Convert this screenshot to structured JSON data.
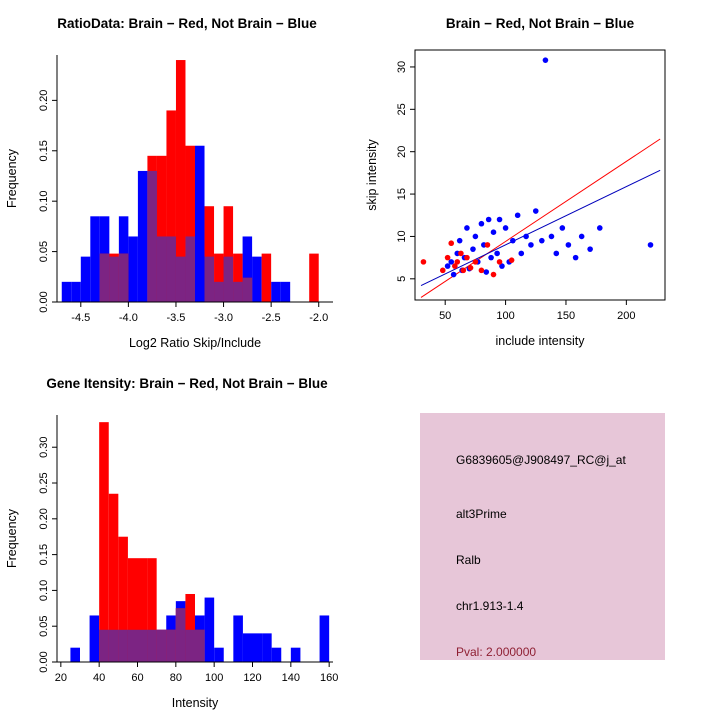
{
  "page": {
    "background": "#ffffff"
  },
  "chart_data": [
    {
      "id": "ratio_histogram",
      "type": "bar",
      "subtype": "overlaid_histogram",
      "title": "RatioData: Brain − Red, Not Brain − Blue",
      "xlabel": "Log2 Ratio Skip/Include",
      "ylabel": "Frequency",
      "xlim": [
        -4.75,
        -1.85
      ],
      "ylim": [
        0,
        0.245
      ],
      "xticks": [
        -4.5,
        -4.0,
        -3.5,
        -3.0,
        -2.5,
        -2.0
      ],
      "xtick_labels": [
        "-4.5",
        "-4.0",
        "-3.5",
        "-3.0",
        "-2.5",
        "-2.0"
      ],
      "yticks": [
        0,
        0.05,
        0.1,
        0.15,
        0.2
      ],
      "ytick_labels": [
        "0.00",
        "0.05",
        "0.10",
        "0.15",
        "0.20"
      ],
      "bin_width": 0.1,
      "overlap_color": "#7c2483",
      "grid": false,
      "legend": "none",
      "series": [
        {
          "name": "Not Brain",
          "color": "#0000ff",
          "bins": [
            [
              -4.7,
              0.02
            ],
            [
              -4.6,
              0.02
            ],
            [
              -4.5,
              0.045
            ],
            [
              -4.4,
              0.085
            ],
            [
              -4.3,
              0.085
            ],
            [
              -4.2,
              0.045
            ],
            [
              -4.1,
              0.085
            ],
            [
              -4.0,
              0.065
            ],
            [
              -3.9,
              0.13
            ],
            [
              -3.8,
              0.13
            ],
            [
              -3.7,
              0.065
            ],
            [
              -3.6,
              0.065
            ],
            [
              -3.5,
              0.045
            ],
            [
              -3.4,
              0.065
            ],
            [
              -3.3,
              0.155
            ],
            [
              -3.2,
              0.045
            ],
            [
              -3.1,
              0.02
            ],
            [
              -3.0,
              0.045
            ],
            [
              -2.9,
              0.02
            ],
            [
              -2.8,
              0.065
            ],
            [
              -2.7,
              0.045
            ],
            [
              -2.5,
              0.02
            ],
            [
              -2.4,
              0.02
            ]
          ]
        },
        {
          "name": "Brain",
          "color": "#ff0000",
          "bins": [
            [
              -4.3,
              0.048
            ],
            [
              -4.2,
              0.048
            ],
            [
              -4.1,
              0.048
            ],
            [
              -3.8,
              0.145
            ],
            [
              -3.7,
              0.145
            ],
            [
              -3.6,
              0.19
            ],
            [
              -3.5,
              0.24
            ],
            [
              -3.4,
              0.155
            ],
            [
              -3.2,
              0.095
            ],
            [
              -3.1,
              0.048
            ],
            [
              -3.0,
              0.095
            ],
            [
              -2.9,
              0.048
            ],
            [
              -2.8,
              0.024
            ],
            [
              -2.6,
              0.048
            ],
            [
              -2.1,
              0.048
            ]
          ]
        }
      ]
    },
    {
      "id": "intensity_scatter",
      "type": "scatter",
      "title": "Brain − Red, Not Brain − Blue",
      "xlabel": "include intensity",
      "ylabel": "skip intensity",
      "xlim": [
        25,
        232
      ],
      "ylim": [
        2.5,
        32
      ],
      "xticks": [
        50,
        100,
        150,
        200
      ],
      "xtick_labels": [
        "50",
        "100",
        "150",
        "200"
      ],
      "yticks": [
        5,
        10,
        15,
        20,
        25,
        30
      ],
      "ytick_labels": [
        "5",
        "10",
        "15",
        "20",
        "25",
        "30"
      ],
      "grid": false,
      "legend": "none",
      "series": [
        {
          "name": "Not Brain",
          "color": "#0000ff",
          "points": [
            [
              52,
              6.5
            ],
            [
              55,
              7
            ],
            [
              57,
              5.5
            ],
            [
              60,
              8
            ],
            [
              62,
              9.5
            ],
            [
              64,
              6
            ],
            [
              66,
              7.5
            ],
            [
              68,
              11
            ],
            [
              70,
              6.2
            ],
            [
              73,
              8.5
            ],
            [
              75,
              10
            ],
            [
              77,
              7
            ],
            [
              80,
              11.5
            ],
            [
              82,
              9
            ],
            [
              84,
              5.8
            ],
            [
              86,
              12
            ],
            [
              88,
              7.5
            ],
            [
              90,
              10.5
            ],
            [
              93,
              8
            ],
            [
              95,
              12
            ],
            [
              97,
              6.5
            ],
            [
              100,
              11
            ],
            [
              103,
              7
            ],
            [
              106,
              9.5
            ],
            [
              110,
              12.5
            ],
            [
              113,
              8
            ],
            [
              117,
              10
            ],
            [
              121,
              9
            ],
            [
              125,
              13
            ],
            [
              130,
              9.5
            ],
            [
              133,
              30.8
            ],
            [
              138,
              10
            ],
            [
              142,
              8
            ],
            [
              147,
              11
            ],
            [
              152,
              9
            ],
            [
              158,
              7.5
            ],
            [
              163,
              10
            ],
            [
              170,
              8.5
            ],
            [
              178,
              11
            ],
            [
              220,
              9
            ]
          ]
        },
        {
          "name": "Brain",
          "color": "#ff0000",
          "points": [
            [
              32,
              7
            ],
            [
              48,
              6
            ],
            [
              52,
              7.5
            ],
            [
              55,
              9.2
            ],
            [
              58,
              6.5
            ],
            [
              60,
              7
            ],
            [
              63,
              8
            ],
            [
              65,
              6
            ],
            [
              68,
              7.5
            ],
            [
              71,
              6.3
            ],
            [
              75,
              7
            ],
            [
              80,
              6
            ],
            [
              85,
              9
            ],
            [
              90,
              5.5
            ],
            [
              95,
              7
            ],
            [
              105,
              7.2
            ]
          ]
        }
      ],
      "lines": [
        {
          "name": "brain_fit",
          "color": "#ff0000",
          "x": [
            30,
            228
          ],
          "y": [
            2.8,
            21.5
          ]
        },
        {
          "name": "not_brain_fit",
          "color": "#0000bb",
          "x": [
            30,
            228
          ],
          "y": [
            4.2,
            17.8
          ]
        }
      ]
    },
    {
      "id": "gene_intensity_histogram",
      "type": "bar",
      "subtype": "overlaid_histogram",
      "title": "Gene Itensity: Brain − Red, Not Brain − Blue",
      "xlabel": "Intensity",
      "ylabel": "Frequency",
      "xlim": [
        18,
        162
      ],
      "ylim": [
        0,
        0.345
      ],
      "xticks": [
        20,
        40,
        60,
        80,
        100,
        120,
        140,
        160
      ],
      "xtick_labels": [
        "20",
        "40",
        "60",
        "80",
        "100",
        "120",
        "140",
        "160"
      ],
      "yticks": [
        0,
        0.05,
        0.1,
        0.15,
        0.2,
        0.25,
        0.3
      ],
      "ytick_labels": [
        "0.00",
        "0.05",
        "0.10",
        "0.15",
        "0.20",
        "0.25",
        "0.30"
      ],
      "bin_width": 5,
      "overlap_color": "#7c2483",
      "grid": false,
      "legend": "none",
      "series": [
        {
          "name": "Not Brain",
          "color": "#0000ff",
          "bins": [
            [
              25,
              0.02
            ],
            [
              35,
              0.065
            ],
            [
              40,
              0.045
            ],
            [
              45,
              0.045
            ],
            [
              50,
              0.045
            ],
            [
              55,
              0.045
            ],
            [
              60,
              0.045
            ],
            [
              65,
              0.045
            ],
            [
              70,
              0.045
            ],
            [
              75,
              0.065
            ],
            [
              80,
              0.085
            ],
            [
              85,
              0.045
            ],
            [
              90,
              0.065
            ],
            [
              95,
              0.09
            ],
            [
              100,
              0.02
            ],
            [
              110,
              0.065
            ],
            [
              115,
              0.04
            ],
            [
              120,
              0.04
            ],
            [
              125,
              0.04
            ],
            [
              130,
              0.02
            ],
            [
              140,
              0.02
            ],
            [
              155,
              0.065
            ]
          ]
        },
        {
          "name": "Brain",
          "color": "#ff0000",
          "bins": [
            [
              40,
              0.335
            ],
            [
              45,
              0.235
            ],
            [
              50,
              0.175
            ],
            [
              55,
              0.145
            ],
            [
              60,
              0.145
            ],
            [
              65,
              0.145
            ],
            [
              70,
              0.045
            ],
            [
              75,
              0.045
            ],
            [
              80,
              0.075
            ],
            [
              85,
              0.095
            ],
            [
              90,
              0.045
            ]
          ]
        }
      ]
    }
  ],
  "info_box": {
    "probe_id": "G6839605@J908497_RC@j_at",
    "splice_type": "alt3Prime",
    "gene_symbol": "Ralb",
    "location": "chr1.913-1.4",
    "pval": "Pval: 2.000000",
    "background": "#e7c6d8",
    "text_color": "#000000",
    "pval_color": "#8f2033"
  }
}
